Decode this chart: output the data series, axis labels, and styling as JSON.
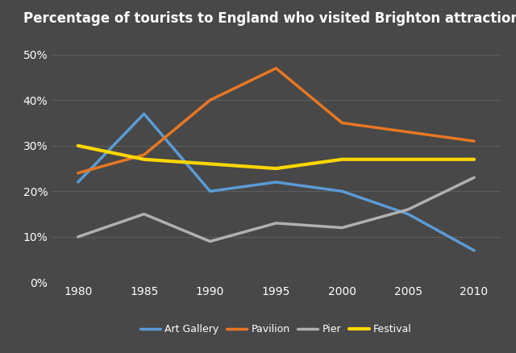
{
  "title": "Percentage of tourists to England who visited Brighton attractions",
  "years": [
    1980,
    1985,
    1990,
    1995,
    2000,
    2005,
    2010
  ],
  "series": {
    "Art Gallery": {
      "values": [
        22,
        37,
        20,
        22,
        20,
        15,
        7
      ],
      "color": "#5B9BD5",
      "linewidth": 2.5
    },
    "Pavilion": {
      "values": [
        24,
        28,
        40,
        47,
        35,
        33,
        31
      ],
      "color": "#E87722",
      "linewidth": 2.5
    },
    "Pier": {
      "values": [
        10,
        15,
        9,
        13,
        12,
        16,
        23
      ],
      "color": "#B0B0B0",
      "linewidth": 2.5
    },
    "Festival": {
      "values": [
        30,
        27,
        26,
        25,
        27,
        27,
        27
      ],
      "color": "#FFD700",
      "linewidth": 3.0
    }
  },
  "legend_order": [
    "Art Gallery",
    "Pavilion",
    "Pier",
    "Festival"
  ],
  "ylim": [
    0,
    55
  ],
  "yticks": [
    0,
    10,
    20,
    30,
    40,
    50
  ],
  "xlim": [
    1978,
    2012
  ],
  "background_color": "#484848",
  "title_color": "#FFFFFF",
  "tick_color": "#FFFFFF",
  "grid_color": "#5C5C5C",
  "legend_text_color": "#FFFFFF",
  "title_fontsize": 12,
  "tick_fontsize": 10,
  "legend_fontsize": 9
}
